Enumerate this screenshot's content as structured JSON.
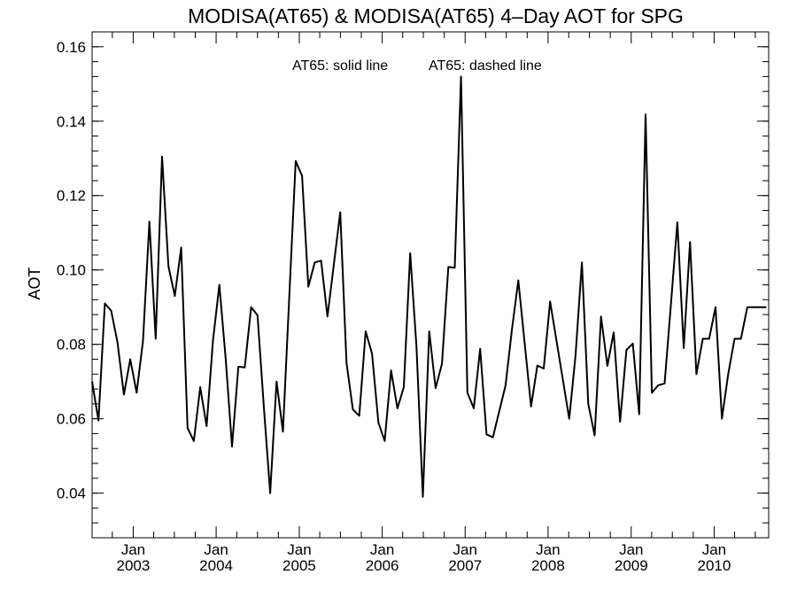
{
  "chart_data": {
    "type": "line",
    "title": "MODISA(AT65) & MODISA(AT65) 4–Day AOT for SPG",
    "annotations": [
      "AT65: solid line",
      "AT65: dashed line"
    ],
    "ylabel": "AOT",
    "xlabel": "",
    "ylim": [
      0.028,
      0.164
    ],
    "xlim": [
      "2002-07-04",
      "2010-08-29"
    ],
    "y_ticks": [
      "0.04",
      "0.06",
      "0.08",
      "0.10",
      "0.12",
      "0.14",
      "0.16"
    ],
    "y_tick_values": [
      0.04,
      0.06,
      0.08,
      0.1,
      0.12,
      0.14,
      0.16
    ],
    "x_ticks": [
      {
        "month": "Jan",
        "year": "2003",
        "date": "2003-01-01"
      },
      {
        "month": "Jan",
        "year": "2004",
        "date": "2004-01-01"
      },
      {
        "month": "Jan",
        "year": "2005",
        "date": "2005-01-01"
      },
      {
        "month": "Jan",
        "year": "2006",
        "date": "2006-01-01"
      },
      {
        "month": "Jan",
        "year": "2007",
        "date": "2007-01-01"
      },
      {
        "month": "Jan",
        "year": "2008",
        "date": "2008-01-01"
      },
      {
        "month": "Jan",
        "year": "2009",
        "date": "2009-01-01"
      },
      {
        "month": "Jan",
        "year": "2010",
        "date": "2010-01-01"
      }
    ],
    "grid": false,
    "series": [
      {
        "line_style": "solid",
        "color": "#000000",
        "x": [
          "2002-07-04",
          "2002-08-01",
          "2002-08-29",
          "2002-09-26",
          "2002-10-24",
          "2002-11-21",
          "2002-12-19",
          "2003-01-16",
          "2003-02-13",
          "2003-03-13",
          "2003-04-10",
          "2003-05-08",
          "2003-06-05",
          "2003-07-03",
          "2003-07-31",
          "2003-08-28",
          "2003-09-25",
          "2003-10-23",
          "2003-11-20",
          "2003-12-18",
          "2004-01-15",
          "2004-02-12",
          "2004-03-11",
          "2004-04-08",
          "2004-05-06",
          "2004-06-03",
          "2004-07-01",
          "2004-07-29",
          "2004-08-26",
          "2004-09-23",
          "2004-10-21",
          "2004-11-18",
          "2004-12-16",
          "2005-01-13",
          "2005-02-10",
          "2005-03-10",
          "2005-04-07",
          "2005-05-05",
          "2005-06-02",
          "2005-06-30",
          "2005-07-28",
          "2005-08-25",
          "2005-09-22",
          "2005-10-20",
          "2005-11-17",
          "2005-12-15",
          "2006-01-12",
          "2006-02-09",
          "2006-03-09",
          "2006-04-06",
          "2006-05-04",
          "2006-06-01",
          "2006-06-29",
          "2006-07-27",
          "2006-08-24",
          "2006-09-21",
          "2006-10-19",
          "2006-11-16",
          "2006-12-14",
          "2007-01-11",
          "2007-02-08",
          "2007-03-08",
          "2007-04-05",
          "2007-05-03",
          "2007-06-28",
          "2007-07-26",
          "2007-08-23",
          "2007-10-18",
          "2007-11-15",
          "2007-12-13",
          "2008-01-10",
          "2008-04-03",
          "2008-05-01",
          "2008-05-29",
          "2008-06-26",
          "2008-07-24",
          "2008-08-21",
          "2008-09-18",
          "2008-10-16",
          "2008-11-13",
          "2008-12-11",
          "2009-01-08",
          "2009-02-05",
          "2009-03-05",
          "2009-04-02",
          "2009-04-30",
          "2009-05-28",
          "2009-06-25",
          "2009-07-23",
          "2009-08-20",
          "2009-09-17",
          "2009-10-15",
          "2009-11-12",
          "2009-12-10",
          "2010-01-07",
          "2010-02-04",
          "2010-03-04",
          "2010-04-01",
          "2010-04-29",
          "2010-05-27",
          "2010-06-24",
          "2010-07-22",
          "2010-08-19"
        ],
        "values": [
          0.07,
          0.0595,
          0.091,
          0.089,
          0.0805,
          0.0665,
          0.076,
          0.067,
          0.081,
          0.113,
          0.0815,
          0.1305,
          0.101,
          0.093,
          0.106,
          0.0575,
          0.054,
          0.0685,
          0.058,
          0.081,
          0.096,
          0.076,
          0.0525,
          0.074,
          0.0738,
          0.09,
          0.0878,
          0.063,
          0.04,
          0.07,
          0.0565,
          0.093,
          0.1293,
          0.1253,
          0.0955,
          0.102,
          0.1025,
          0.0875,
          0.1015,
          0.1155,
          0.075,
          0.0625,
          0.0608,
          0.0835,
          0.0775,
          0.059,
          0.054,
          0.073,
          0.0628,
          0.0685,
          0.1045,
          0.079,
          0.039,
          0.0835,
          0.0682,
          0.0748,
          0.1008,
          0.1006,
          0.152,
          0.067,
          0.0628,
          0.0788,
          0.0558,
          0.055,
          0.069,
          0.084,
          0.0972,
          0.0633,
          0.0743,
          0.0735,
          0.0915,
          0.06,
          0.077,
          0.102,
          0.064,
          0.0555,
          0.0875,
          0.0742,
          0.0832,
          0.0592,
          0.0785,
          0.0802,
          0.0612,
          0.1418,
          0.067,
          0.069,
          0.0695,
          0.091,
          0.1128,
          0.079,
          0.1075,
          0.072,
          0.0815,
          0.0815,
          0.09,
          0.06,
          0.072,
          0.0815,
          0.0815,
          0.09,
          0.09,
          0.09,
          0.09
        ]
      }
    ]
  }
}
